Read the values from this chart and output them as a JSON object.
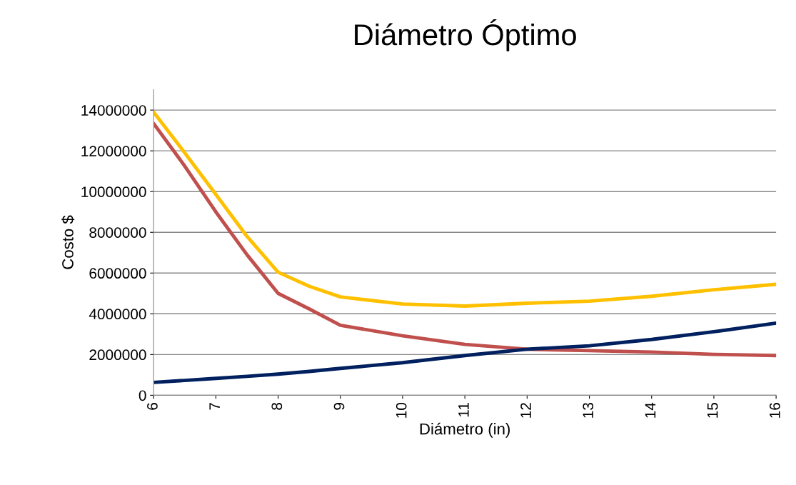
{
  "chart_data": {
    "type": "line",
    "title": "Diámetro Óptimo",
    "xlabel": "Diámetro (in)",
    "ylabel": "Costo $",
    "x": [
      6,
      6.5,
      7,
      7.5,
      8,
      8.5,
      9,
      10,
      11,
      12,
      13,
      14,
      15,
      16
    ],
    "series": [
      {
        "color": "#ffc000",
        "values": [
          13900000,
          11900000,
          9860000,
          7800000,
          6040000,
          5350000,
          4830000,
          4480000,
          4380000,
          4520000,
          4620000,
          4860000,
          5180000,
          5450000
        ]
      },
      {
        "color": "#c0504d",
        "values": [
          13340000,
          11250000,
          9000000,
          6900000,
          5000000,
          4240000,
          3440000,
          2920000,
          2500000,
          2260000,
          2190000,
          2120000,
          2010000,
          1950000
        ]
      },
      {
        "color": "#002060",
        "values": [
          630000,
          730000,
          830000,
          930000,
          1040000,
          1170000,
          1320000,
          1600000,
          1950000,
          2260000,
          2430000,
          2740000,
          3120000,
          3540000
        ]
      }
    ],
    "xlim": [
      6,
      16
    ],
    "xticks": [
      6,
      7,
      8,
      9,
      10,
      11,
      12,
      13,
      14,
      15,
      16
    ],
    "ylim": [
      0,
      15000000
    ],
    "yticks": [
      0,
      2000000,
      4000000,
      6000000,
      8000000,
      10000000,
      12000000,
      14000000
    ],
    "grid": "y",
    "legend": false,
    "marker": "none",
    "line_style": "solid"
  }
}
